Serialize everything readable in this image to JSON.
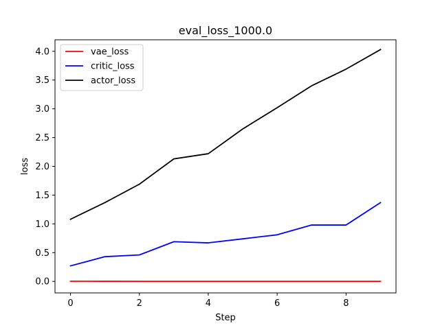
{
  "chart_data": {
    "type": "line",
    "title": "eval_loss_1000.0",
    "xlabel": "Step",
    "ylabel": "loss",
    "x": [
      0,
      1,
      2,
      3,
      4,
      5,
      6,
      7,
      8,
      9
    ],
    "xlim": [
      -0.45,
      9.45
    ],
    "ylim": [
      -0.2,
      4.2
    ],
    "xticks": [
      0,
      2,
      4,
      6,
      8
    ],
    "yticks": [
      0.0,
      0.5,
      1.0,
      1.5,
      2.0,
      2.5,
      3.0,
      3.5,
      4.0
    ],
    "xtick_labels": [
      "0",
      "2",
      "4",
      "6",
      "8"
    ],
    "ytick_labels": [
      "0.0",
      "0.5",
      "1.0",
      "1.5",
      "2.0",
      "2.5",
      "3.0",
      "3.5",
      "4.0"
    ],
    "grid": false,
    "legend_position": "upper-left",
    "series": [
      {
        "name": "vae_loss",
        "color": "#ff0000",
        "values": [
          0.003,
          0.002,
          0.001,
          0.001,
          0.001,
          0.001,
          0.001,
          0.001,
          0.001,
          0.001
        ]
      },
      {
        "name": "critic_loss",
        "color": "#0000ff",
        "values": [
          0.27,
          0.43,
          0.46,
          0.69,
          0.67,
          0.74,
          0.81,
          0.98,
          0.98,
          1.37
        ]
      },
      {
        "name": "actor_loss",
        "color": "#000000",
        "values": [
          1.08,
          1.37,
          1.69,
          2.13,
          2.22,
          2.65,
          3.02,
          3.4,
          3.69,
          4.03
        ]
      }
    ]
  }
}
